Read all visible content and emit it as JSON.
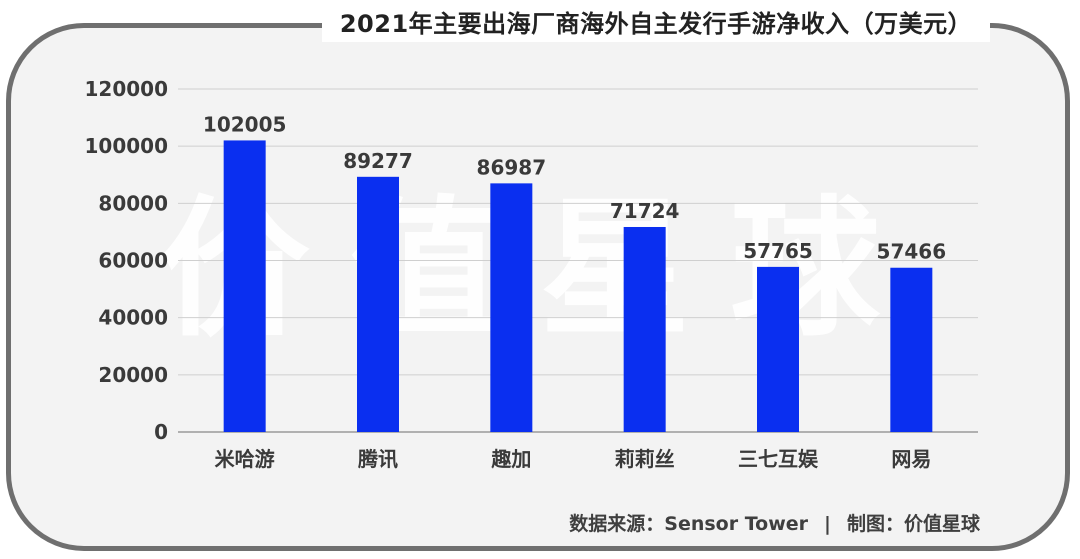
{
  "chart_data": {
    "type": "bar",
    "title": "2021年主要出海厂商海外自主发行手游净收入（万美元）",
    "categories": [
      "米哈游",
      "腾讯",
      "趣加",
      "莉莉丝",
      "三七互娱",
      "网易"
    ],
    "values": [
      102005,
      89277,
      86987,
      71724,
      57765,
      57466
    ],
    "yticks": [
      0,
      20000,
      40000,
      60000,
      80000,
      100000,
      120000
    ],
    "ylim": [
      0,
      120000
    ],
    "grid": true,
    "bar_color": "#0a2ff0"
  },
  "watermark": "价值星球",
  "footer": {
    "source": "数据来源：Sensor Tower",
    "separator": "|",
    "credit": "制图：价值星球"
  }
}
